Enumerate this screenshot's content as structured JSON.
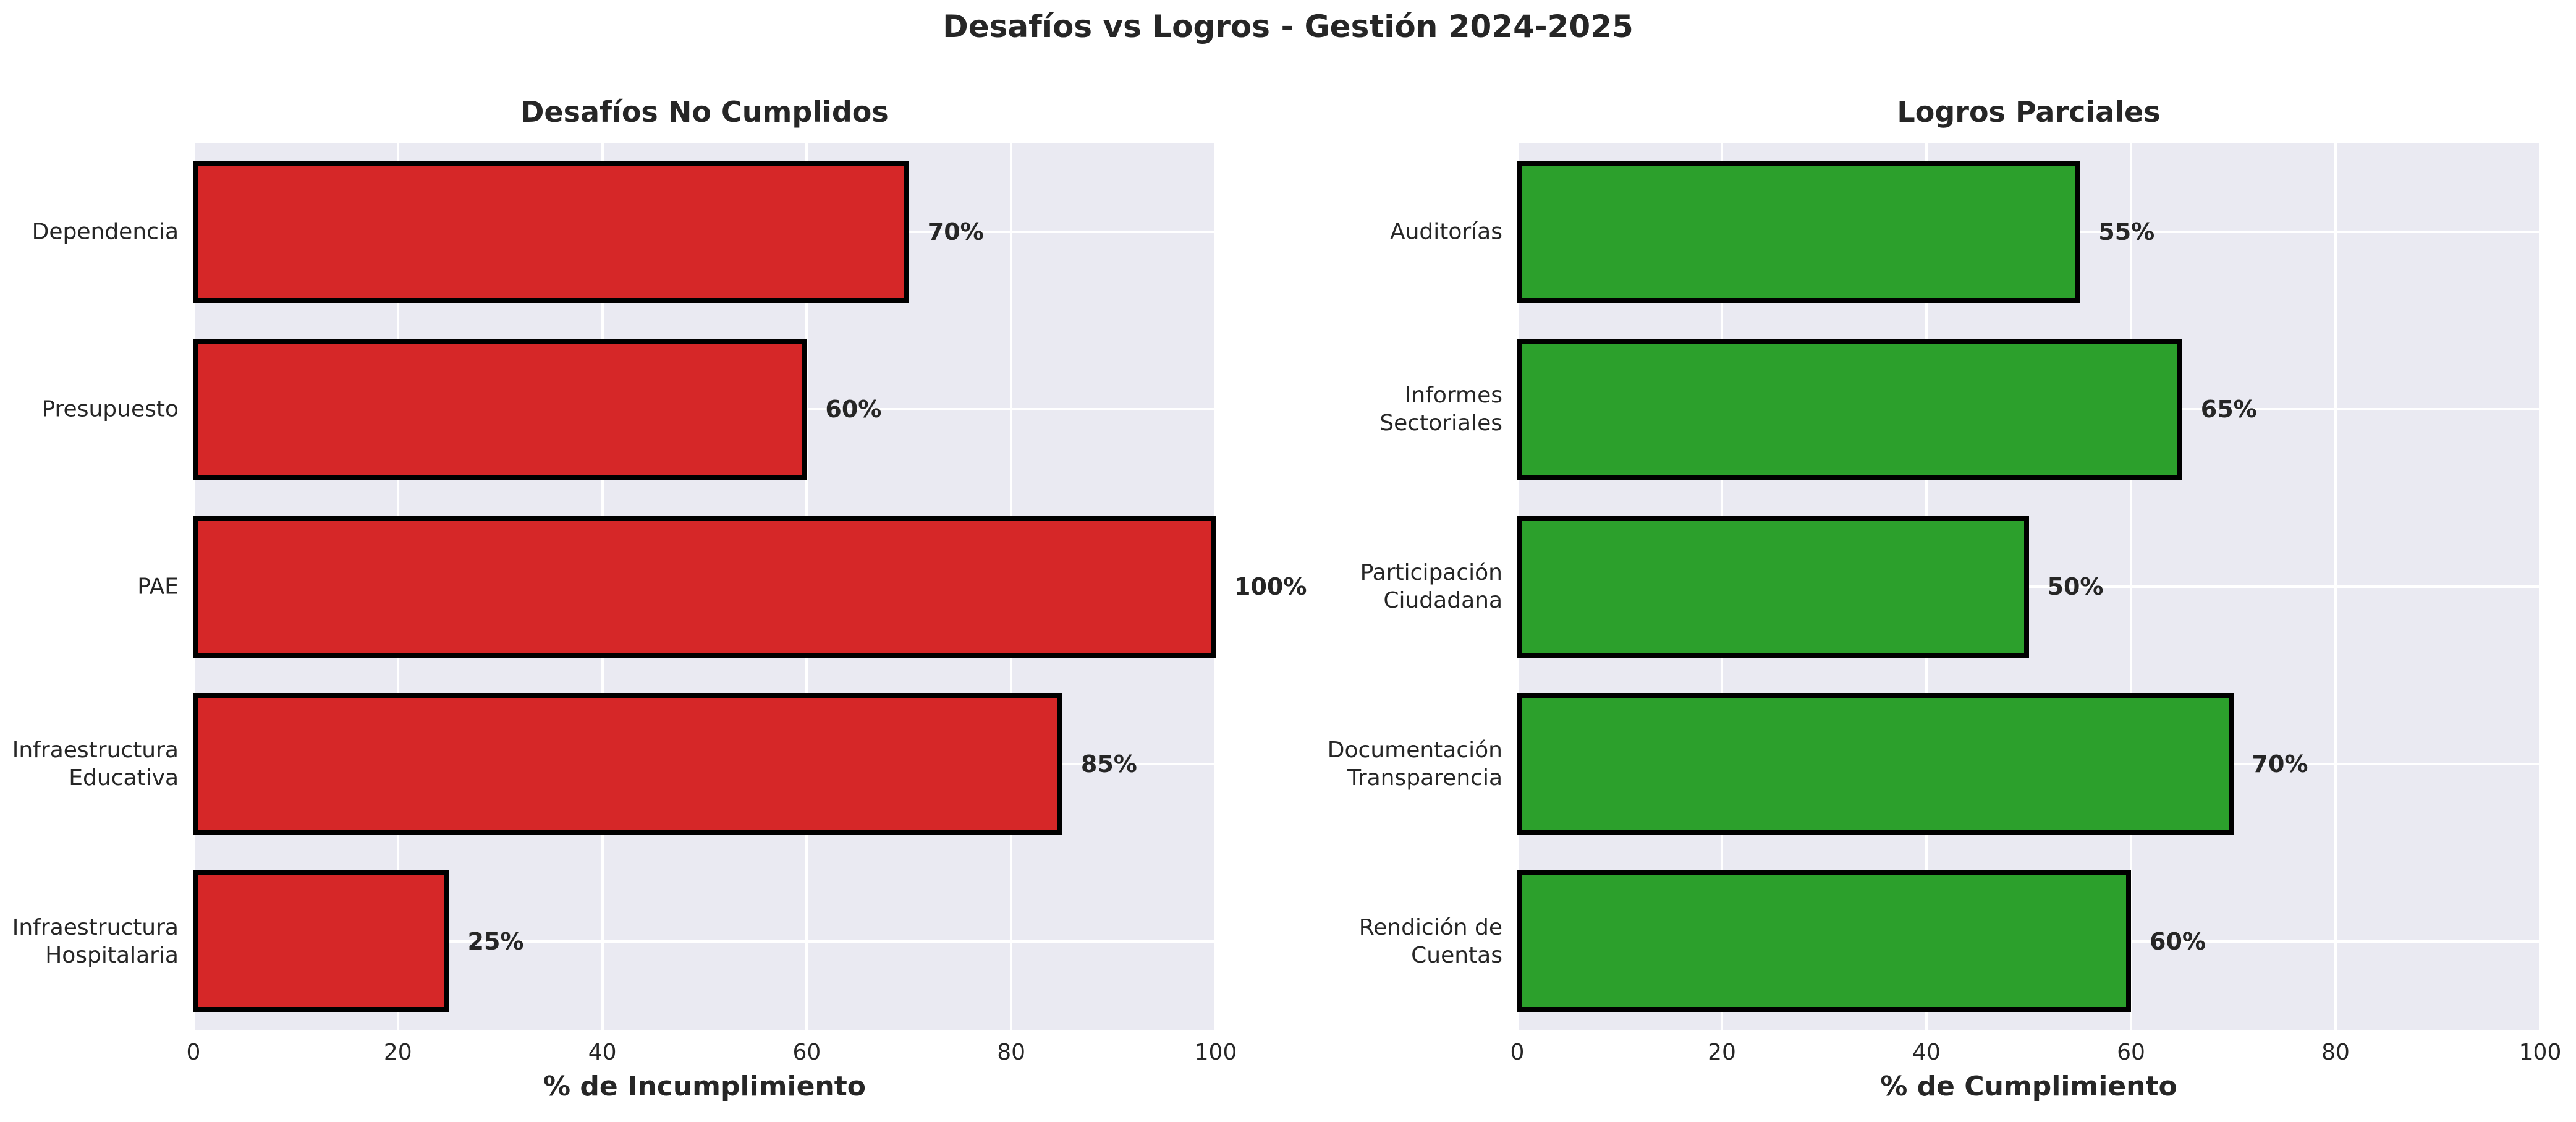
{
  "suptitle": "Desafíos vs Logros - Gestión 2024-2025",
  "text_color": "#262626",
  "chart_data": [
    {
      "type": "bar",
      "orientation": "horizontal",
      "title": "Desafíos No Cumplidos",
      "categories": [
        "Dependencia",
        "Presupuesto",
        "PAE",
        "Infraestructura Educativa",
        "Infraestructura Hospitalaria"
      ],
      "values": [
        70,
        60,
        100,
        85,
        25
      ],
      "value_labels": [
        "70%",
        "60%",
        "100%",
        "85%",
        "25%"
      ],
      "xlabel": "% de Incumplimiento",
      "xlim": [
        0,
        100
      ],
      "xticks": [
        0,
        20,
        40,
        60,
        80,
        100
      ],
      "grid": true,
      "legend": "none",
      "bar_color": "#d62728",
      "bar_edge_color": "#000000",
      "plot_bg_color": "#eaeaf2",
      "grid_color": "#ffffff"
    },
    {
      "type": "bar",
      "orientation": "horizontal",
      "title": "Logros Parciales",
      "categories": [
        "Auditorías",
        "Informes Sectoriales",
        "Participación Ciudadana",
        "Documentación Transparencia",
        "Rendición de Cuentas"
      ],
      "values": [
        55,
        65,
        50,
        70,
        60
      ],
      "value_labels": [
        "55%",
        "65%",
        "50%",
        "70%",
        "60%"
      ],
      "xlabel": "% de Cumplimiento",
      "xlim": [
        0,
        100
      ],
      "xticks": [
        0,
        20,
        40,
        60,
        80,
        100
      ],
      "grid": true,
      "legend": "none",
      "bar_color": "#2ca02c",
      "bar_edge_color": "#000000",
      "plot_bg_color": "#eaeaf2",
      "grid_color": "#ffffff"
    }
  ]
}
